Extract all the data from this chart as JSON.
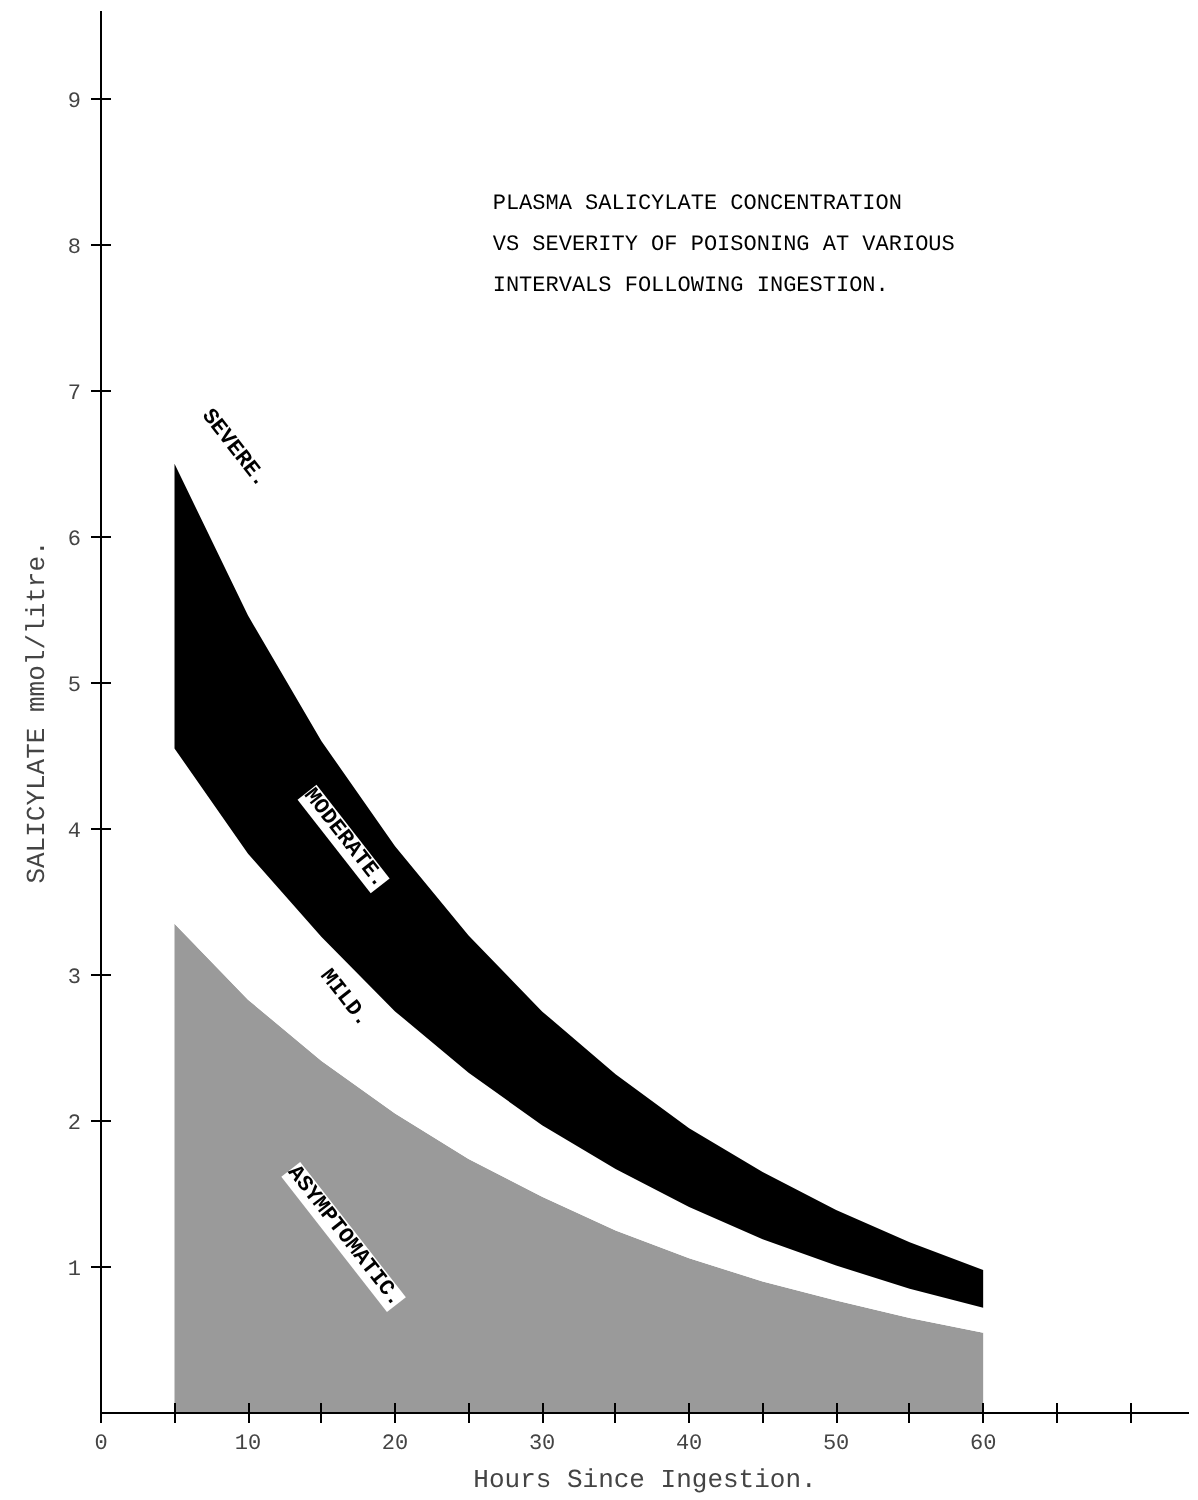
{
  "chart_data": {
    "type": "area",
    "stacked": true,
    "title": "PLASMA SALICYLATE CONCENTRATION\nVS SEVERITY OF POISONING AT VARIOUS\nINTERVALS FOLLOWING INGESTION.",
    "xlabel": "Hours Since Ingestion.",
    "ylabel": "SALICYLATE mmol/litre.",
    "x": [
      5,
      10,
      15,
      20,
      25,
      30,
      35,
      40,
      45,
      50,
      55,
      60
    ],
    "series": [
      {
        "name": "ASYMPTOMATIC.",
        "color": "#9a9a9a",
        "values": [
          3.35,
          2.83,
          2.41,
          2.05,
          1.74,
          1.48,
          1.25,
          1.06,
          0.9,
          0.77,
          0.65,
          0.55
        ]
      },
      {
        "name": "MILD.",
        "color": "#ffffff",
        "values": [
          1.2,
          1.0,
          0.85,
          0.7,
          0.59,
          0.49,
          0.42,
          0.35,
          0.29,
          0.24,
          0.2,
          0.17
        ]
      },
      {
        "name": "MODERATE.",
        "color": "#000000",
        "values": [
          1.95,
          1.63,
          1.34,
          1.13,
          0.94,
          0.78,
          0.65,
          0.54,
          0.46,
          0.38,
          0.32,
          0.26
        ]
      }
    ],
    "annotations": [
      "SEVERE."
    ],
    "xlim": [
      0,
      74
    ],
    "ylim": [
      0,
      9.6
    ],
    "xticks": [
      0,
      {
        "value": 5,
        "label": null
      },
      10,
      {
        "value": 15,
        "label": null
      },
      20,
      {
        "value": 25,
        "label": null
      },
      30,
      {
        "value": 35,
        "label": null
      },
      40,
      {
        "value": 45,
        "label": null
      },
      50,
      {
        "value": 55,
        "label": null
      },
      60,
      {
        "value": 65,
        "label": null
      },
      {
        "value": 70,
        "label": null
      }
    ],
    "yticks": [
      1,
      2,
      3,
      4,
      5,
      6,
      7,
      8,
      9
    ],
    "grid": false
  }
}
